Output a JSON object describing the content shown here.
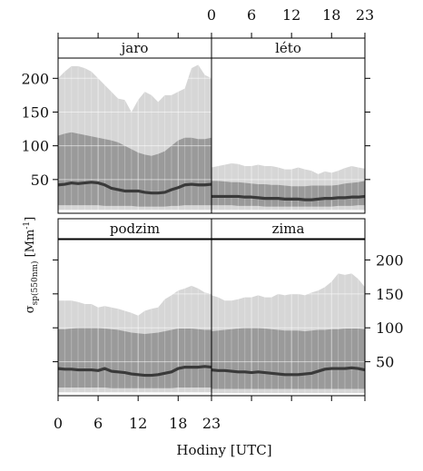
{
  "chart_data": {
    "type": "area",
    "xlabel": "Hodiny  [UTC]",
    "ylabel": {
      "symbol": "σ",
      "subscript": "sp(550nm)",
      "unit": " [Mm",
      "exp": "-1",
      "close": "]"
    },
    "x": [
      0,
      1,
      2,
      3,
      4,
      5,
      6,
      7,
      8,
      9,
      10,
      11,
      12,
      13,
      14,
      15,
      16,
      17,
      18,
      19,
      20,
      21,
      22,
      23
    ],
    "xlim": [
      0,
      23
    ],
    "xticks": [
      "0",
      "6",
      "12",
      "18",
      "23"
    ],
    "xtick_values": [
      0,
      6,
      12,
      18,
      23
    ],
    "ylim": [
      0,
      230
    ],
    "yticks": [
      "50",
      "100",
      "150",
      "200"
    ],
    "ytick_values": [
      50,
      100,
      150,
      200
    ],
    "grid": true,
    "series_legend": [
      {
        "role": "outer-band",
        "color": "#d6d6d6"
      },
      {
        "role": "inner-band",
        "color": "#9a9a9a"
      },
      {
        "role": "center-line",
        "color": "#3a3a3a"
      }
    ],
    "panels": [
      {
        "title": "jaro",
        "outer_high": [
          200,
          210,
          218,
          218,
          215,
          210,
          200,
          190,
          180,
          170,
          168,
          150,
          168,
          180,
          175,
          165,
          175,
          175,
          180,
          185,
          215,
          220,
          205,
          200
        ],
        "inner_high": [
          115,
          118,
          120,
          118,
          116,
          114,
          112,
          110,
          108,
          105,
          100,
          95,
          90,
          87,
          85,
          88,
          92,
          100,
          108,
          112,
          112,
          110,
          110,
          112
        ],
        "line": [
          42,
          43,
          45,
          44,
          45,
          46,
          45,
          42,
          37,
          35,
          33,
          33,
          33,
          31,
          30,
          30,
          31,
          35,
          38,
          42,
          43,
          42,
          42,
          43
        ],
        "inner_low": [
          12,
          12,
          12,
          12,
          12,
          12,
          12,
          11,
          11,
          11,
          11,
          11,
          10,
          10,
          10,
          10,
          10,
          11,
          11,
          12,
          12,
          12,
          12,
          12
        ],
        "outer_low": [
          5,
          5,
          5,
          5,
          5,
          5,
          5,
          5,
          5,
          5,
          5,
          5,
          5,
          5,
          5,
          5,
          5,
          5,
          5,
          5,
          5,
          5,
          5,
          5
        ]
      },
      {
        "title": "léto",
        "outer_high": [
          68,
          70,
          72,
          74,
          73,
          70,
          70,
          72,
          70,
          70,
          68,
          65,
          65,
          68,
          65,
          63,
          58,
          62,
          60,
          63,
          67,
          70,
          68,
          66
        ],
        "inner_high": [
          48,
          48,
          47,
          46,
          46,
          45,
          44,
          43,
          43,
          42,
          42,
          41,
          40,
          40,
          40,
          41,
          41,
          41,
          41,
          42,
          44,
          45,
          46,
          48
        ],
        "line": [
          25,
          25,
          25,
          25,
          25,
          24,
          24,
          23,
          22,
          22,
          22,
          21,
          21,
          21,
          20,
          20,
          21,
          22,
          22,
          23,
          23,
          24,
          24,
          25
        ],
        "inner_low": [
          12,
          12,
          12,
          12,
          11,
          11,
          11,
          11,
          10,
          10,
          10,
          10,
          10,
          10,
          10,
          10,
          10,
          10,
          10,
          11,
          11,
          11,
          12,
          12
        ],
        "outer_low": [
          5,
          5,
          5,
          5,
          5,
          5,
          5,
          5,
          5,
          5,
          5,
          5,
          5,
          5,
          5,
          5,
          5,
          5,
          5,
          5,
          5,
          5,
          5,
          5
        ]
      },
      {
        "title": "podzim",
        "outer_high": [
          140,
          140,
          140,
          138,
          135,
          135,
          130,
          132,
          130,
          128,
          125,
          122,
          118,
          125,
          128,
          130,
          142,
          148,
          155,
          158,
          162,
          158,
          152,
          150
        ],
        "inner_high": [
          98,
          98,
          99,
          100,
          100,
          100,
          100,
          99,
          98,
          97,
          95,
          93,
          92,
          91,
          92,
          93,
          95,
          97,
          99,
          99,
          99,
          98,
          97,
          97
        ],
        "line": [
          40,
          39,
          39,
          38,
          38,
          38,
          37,
          40,
          36,
          35,
          34,
          32,
          31,
          30,
          30,
          31,
          33,
          35,
          40,
          42,
          42,
          42,
          43,
          42
        ],
        "inner_low": [
          12,
          12,
          12,
          12,
          12,
          12,
          12,
          12,
          11,
          11,
          11,
          11,
          11,
          11,
          11,
          11,
          11,
          11,
          12,
          12,
          12,
          12,
          12,
          12
        ],
        "outer_low": [
          5,
          5,
          5,
          5,
          5,
          5,
          5,
          5,
          5,
          5,
          5,
          5,
          5,
          5,
          5,
          5,
          5,
          5,
          5,
          5,
          5,
          5,
          5,
          5
        ]
      },
      {
        "title": "zima",
        "outer_high": [
          148,
          145,
          140,
          140,
          142,
          145,
          145,
          148,
          145,
          145,
          150,
          148,
          150,
          150,
          148,
          152,
          155,
          160,
          168,
          180,
          178,
          180,
          172,
          160
        ],
        "inner_high": [
          95,
          96,
          97,
          98,
          99,
          100,
          100,
          100,
          99,
          98,
          97,
          96,
          96,
          96,
          95,
          96,
          97,
          97,
          98,
          98,
          99,
          99,
          99,
          98
        ],
        "line": [
          38,
          37,
          37,
          36,
          35,
          35,
          34,
          35,
          34,
          33,
          32,
          31,
          31,
          31,
          32,
          33,
          36,
          39,
          40,
          40,
          40,
          41,
          40,
          38
        ],
        "inner_low": [
          10,
          10,
          10,
          10,
          10,
          10,
          10,
          10,
          10,
          10,
          10,
          10,
          10,
          10,
          10,
          10,
          10,
          10,
          10,
          10,
          10,
          10,
          10,
          10
        ],
        "outer_low": [
          4,
          4,
          4,
          4,
          4,
          4,
          4,
          4,
          4,
          4,
          4,
          4,
          4,
          4,
          4,
          4,
          4,
          4,
          4,
          4,
          4,
          4,
          4,
          4
        ]
      }
    ]
  }
}
